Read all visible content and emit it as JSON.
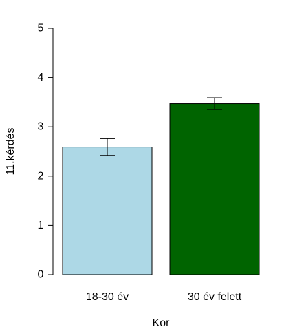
{
  "chart_data": {
    "type": "bar",
    "categories": [
      "18-30 év",
      "30 év felett"
    ],
    "values": [
      2.59,
      3.47
    ],
    "error_low": [
      2.42,
      3.35
    ],
    "error_high": [
      2.76,
      3.59
    ],
    "colors": [
      "#add8e6",
      "#006400"
    ],
    "xlabel": "Kor",
    "ylabel": "11.kérdés",
    "ylim": [
      0,
      5
    ],
    "yticks": [
      "0",
      "1",
      "2",
      "3",
      "4",
      "5"
    ],
    "grid": false,
    "legend": "none"
  }
}
